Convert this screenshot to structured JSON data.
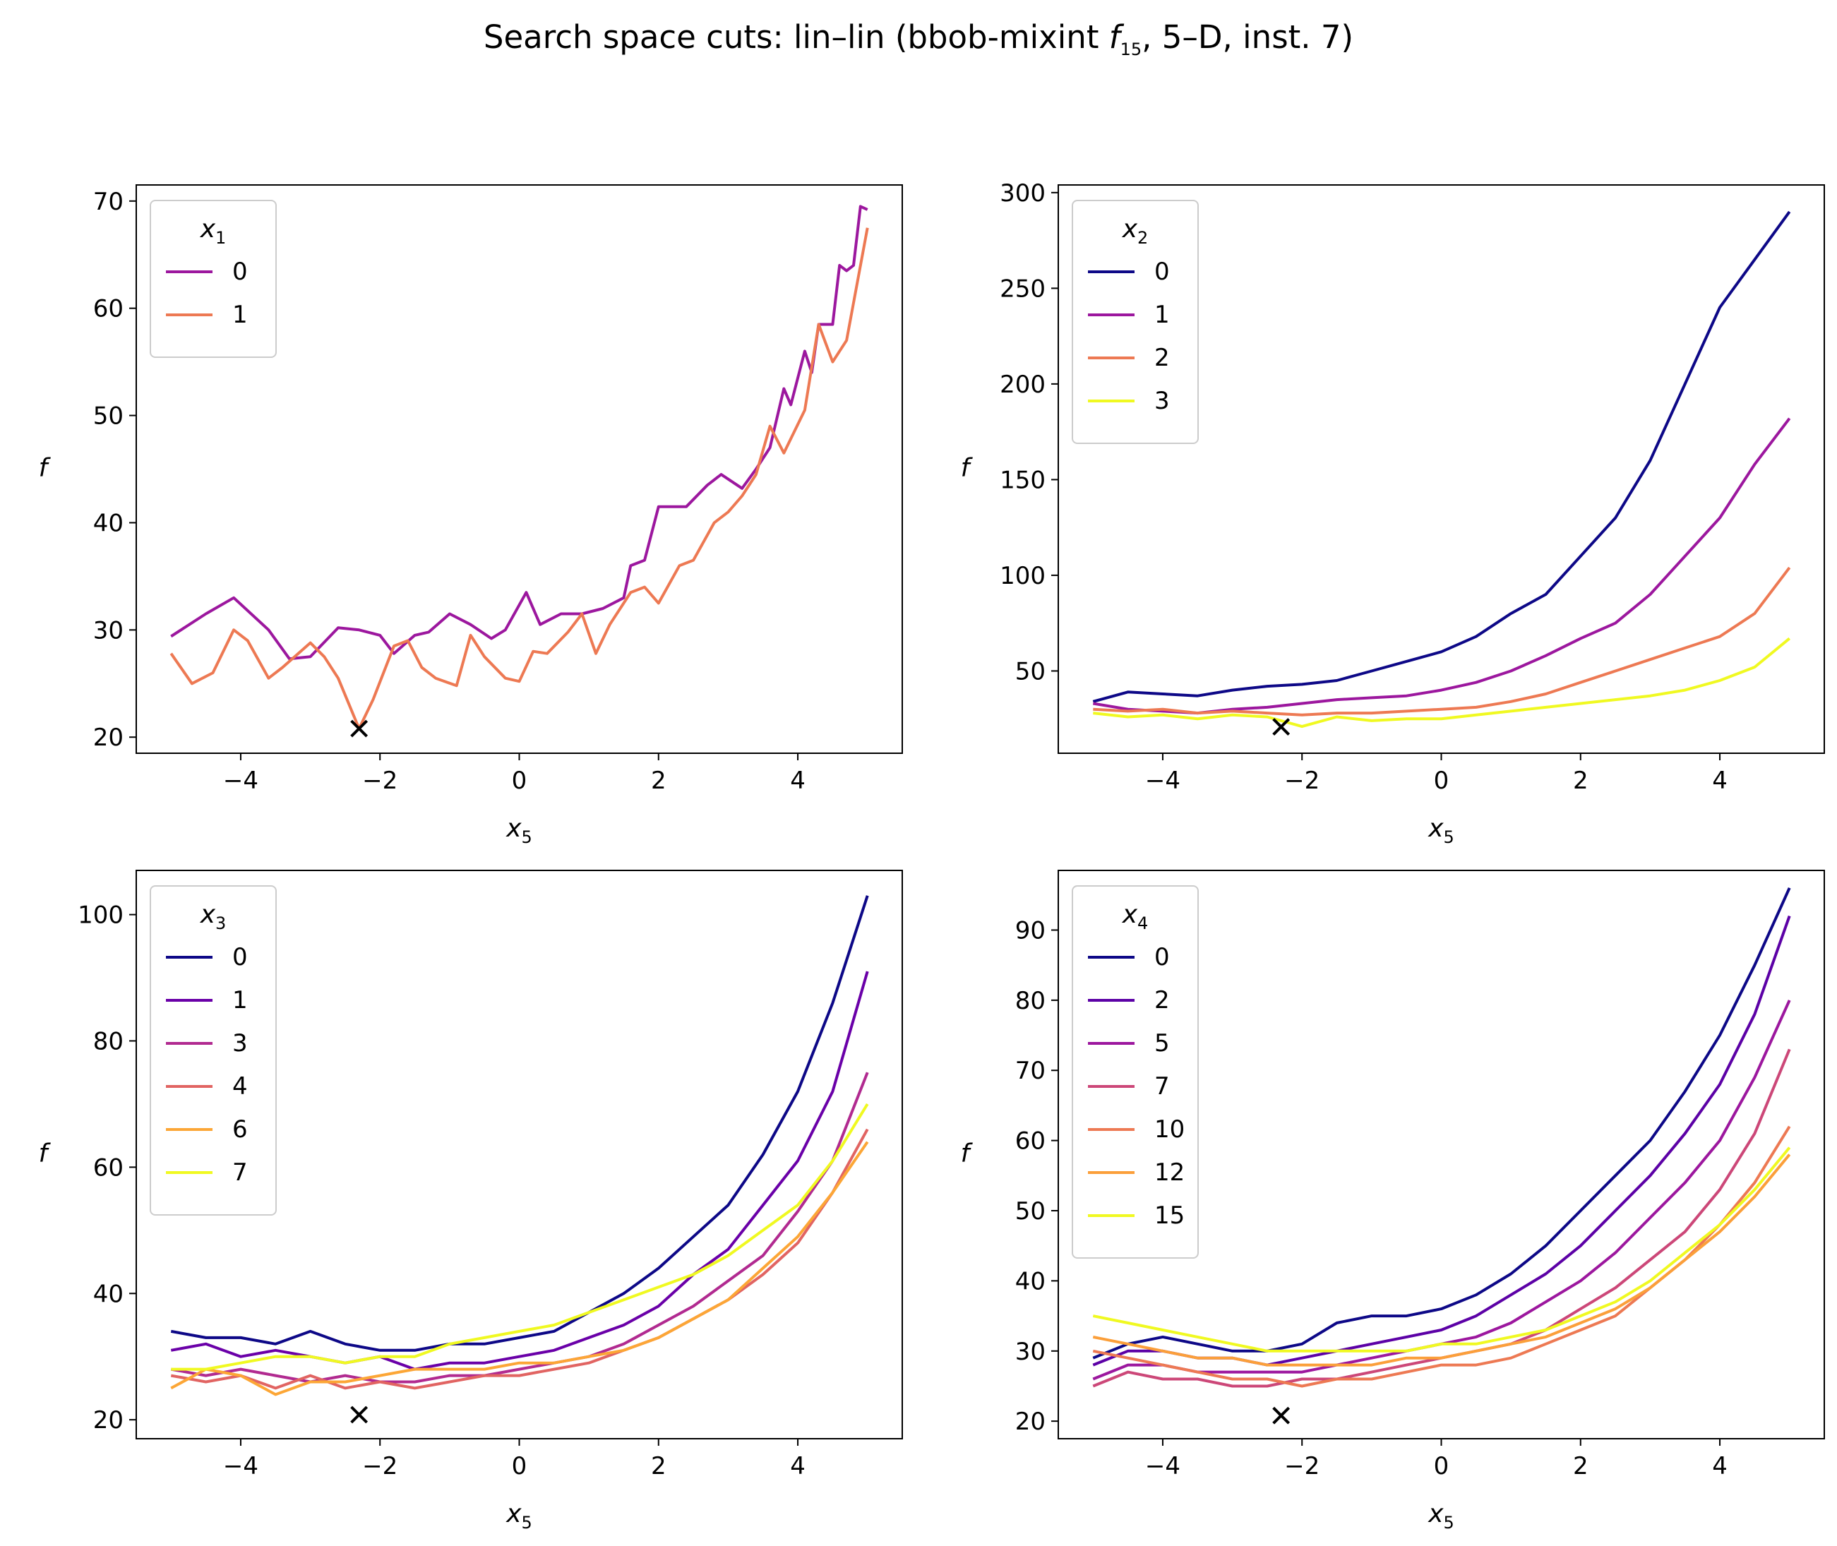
{
  "figure": {
    "title_prefix": "Search space cuts: lin–lin (bbob-mixint ",
    "title_f": "f",
    "title_sub": "15",
    "title_suffix": ", 5–D, inst. 7)"
  },
  "chart_data": [
    {
      "type": "line",
      "xlabel": "x",
      "xlabel_sub": "5",
      "ylabel": "f",
      "xlim": [
        -5.5,
        5.5
      ],
      "ylim": [
        18.5,
        71.5
      ],
      "xticks": [
        -4,
        -2,
        0,
        2,
        4
      ],
      "yticks": [
        20,
        30,
        40,
        50,
        60,
        70
      ],
      "legend_title": "x",
      "legend_title_sub": "1",
      "legend_position": "upper left",
      "marker": {
        "x": -2.3,
        "y": 20.8,
        "symbol": "×",
        "color": "#000000"
      },
      "series": [
        {
          "name": "0",
          "color": "#9c179e",
          "x": [
            -5,
            -4.5,
            -4.1,
            -3.6,
            -3.3,
            -3,
            -2.6,
            -2.3,
            -2,
            -1.8,
            -1.5,
            -1.3,
            -1,
            -0.7,
            -0.4,
            -0.2,
            0.1,
            0.3,
            0.6,
            0.9,
            1.2,
            1.5,
            1.6,
            1.8,
            2,
            2.4,
            2.7,
            2.9,
            3.2,
            3.4,
            3.6,
            3.8,
            3.9,
            4.1,
            4.2,
            4.3,
            4.5,
            4.6,
            4.7,
            4.8,
            4.9,
            5
          ],
          "y": [
            29.4,
            31.5,
            33,
            30,
            27.3,
            27.5,
            30.2,
            30,
            29.5,
            27.8,
            29.5,
            29.8,
            31.5,
            30.5,
            29.2,
            30,
            33.5,
            30.5,
            31.5,
            31.5,
            32,
            33,
            36,
            36.5,
            41.5,
            41.5,
            43.5,
            44.5,
            43.2,
            45,
            47,
            52.5,
            51,
            56,
            54,
            58.5,
            58.5,
            64,
            63.5,
            64,
            69.5,
            69.2
          ]
        },
        {
          "name": "1",
          "color": "#ed7953",
          "x": [
            -5,
            -4.7,
            -4.4,
            -4.1,
            -3.9,
            -3.6,
            -3.4,
            -3,
            -2.8,
            -2.6,
            -2.3,
            -2.1,
            -1.8,
            -1.6,
            -1.4,
            -1.2,
            -0.9,
            -0.7,
            -0.5,
            -0.2,
            0,
            0.2,
            0.4,
            0.7,
            0.9,
            1.1,
            1.3,
            1.6,
            1.8,
            2,
            2.3,
            2.5,
            2.8,
            3,
            3.2,
            3.4,
            3.6,
            3.8,
            4.1,
            4.3,
            4.5,
            4.7,
            5
          ],
          "y": [
            27.8,
            25,
            26,
            30,
            29,
            25.5,
            26.5,
            28.8,
            27.5,
            25.5,
            20.8,
            23.5,
            28.5,
            29,
            26.5,
            25.5,
            24.8,
            29.5,
            27.5,
            25.5,
            25.2,
            28,
            27.8,
            29.8,
            31.5,
            27.8,
            30.5,
            33.5,
            34,
            32.5,
            36,
            36.5,
            40,
            41,
            42.5,
            44.5,
            49,
            46.5,
            50.5,
            58.5,
            55,
            57,
            67.5
          ]
        }
      ]
    },
    {
      "type": "line",
      "xlabel": "x",
      "xlabel_sub": "5",
      "ylabel": "f",
      "xlim": [
        -5.5,
        5.5
      ],
      "ylim": [
        7,
        304
      ],
      "xticks": [
        -4,
        -2,
        0,
        2,
        4
      ],
      "yticks": [
        50,
        100,
        150,
        200,
        250,
        300
      ],
      "legend_title": "x",
      "legend_title_sub": "2",
      "legend_position": "upper left",
      "marker": {
        "x": -2.3,
        "y": 20.8,
        "symbol": "×",
        "color": "#000000"
      },
      "series": [
        {
          "name": "0",
          "color": "#0d0887",
          "x": [
            -5,
            -4.5,
            -4,
            -3.5,
            -3,
            -2.5,
            -2,
            -1.5,
            -1,
            -0.5,
            0,
            0.5,
            1,
            1.5,
            2,
            2.5,
            3,
            3.5,
            4,
            4.5,
            5
          ],
          "y": [
            34,
            39,
            38,
            37,
            40,
            42,
            43,
            45,
            50,
            55,
            60,
            68,
            80,
            90,
            110,
            130,
            160,
            200,
            240,
            265,
            290
          ]
        },
        {
          "name": "1",
          "color": "#9c179e",
          "x": [
            -5,
            -4.5,
            -4,
            -3.5,
            -3,
            -2.5,
            -2,
            -1.5,
            -1,
            -0.5,
            0,
            0.5,
            1,
            1.5,
            2,
            2.5,
            3,
            3.5,
            4,
            4.5,
            5
          ],
          "y": [
            33,
            30,
            29,
            28,
            30,
            31,
            33,
            35,
            36,
            37,
            40,
            44,
            50,
            58,
            67,
            75,
            90,
            110,
            130,
            158,
            182
          ]
        },
        {
          "name": "2",
          "color": "#ed7953",
          "x": [
            -5,
            -4.5,
            -4,
            -3.5,
            -3,
            -2.5,
            -2,
            -1.5,
            -1,
            -0.5,
            0,
            0.5,
            1,
            1.5,
            2,
            2.5,
            3,
            3.5,
            4,
            4.5,
            5
          ],
          "y": [
            30,
            29,
            30,
            28,
            29,
            28,
            27,
            28,
            28,
            29,
            30,
            31,
            34,
            38,
            44,
            50,
            56,
            62,
            68,
            80,
            104
          ]
        },
        {
          "name": "3",
          "color": "#f0f921",
          "x": [
            -5,
            -4.5,
            -4,
            -3.5,
            -3,
            -2.5,
            -2,
            -1.5,
            -1,
            -0.5,
            0,
            0.5,
            1,
            1.5,
            2,
            2.5,
            3,
            3.5,
            4,
            4.5,
            5
          ],
          "y": [
            28,
            26,
            27,
            25,
            27,
            26,
            21,
            26,
            24,
            25,
            25,
            27,
            29,
            31,
            33,
            35,
            37,
            40,
            45,
            52,
            67
          ]
        }
      ]
    },
    {
      "type": "line",
      "xlabel": "x",
      "xlabel_sub": "5",
      "ylabel": "f",
      "xlim": [
        -5.5,
        5.5
      ],
      "ylim": [
        17,
        107
      ],
      "xticks": [
        -4,
        -2,
        0,
        2,
        4
      ],
      "yticks": [
        20,
        40,
        60,
        80,
        100
      ],
      "legend_title": "x",
      "legend_title_sub": "3",
      "legend_position": "upper left",
      "marker": {
        "x": -2.3,
        "y": 20.8,
        "symbol": "×",
        "color": "#000000"
      },
      "series": [
        {
          "name": "0",
          "color": "#0d0887",
          "x": [
            -5,
            -4.5,
            -4,
            -3.5,
            -3,
            -2.5,
            -2,
            -1.5,
            -1,
            -0.5,
            0,
            0.5,
            1,
            1.5,
            2,
            2.5,
            3,
            3.5,
            4,
            4.5,
            5
          ],
          "y": [
            34,
            33,
            33,
            32,
            34,
            32,
            31,
            31,
            32,
            32,
            33,
            34,
            37,
            40,
            44,
            49,
            54,
            62,
            72,
            86,
            103
          ]
        },
        {
          "name": "1",
          "color": "#6a00a8",
          "x": [
            -5,
            -4.5,
            -4,
            -3.5,
            -3,
            -2.5,
            -2,
            -1.5,
            -1,
            -0.5,
            0,
            0.5,
            1,
            1.5,
            2,
            2.5,
            3,
            3.5,
            4,
            4.5,
            5
          ],
          "y": [
            31,
            32,
            30,
            31,
            30,
            29,
            30,
            28,
            29,
            29,
            30,
            31,
            33,
            35,
            38,
            43,
            47,
            54,
            61,
            72,
            91
          ]
        },
        {
          "name": "3",
          "color": "#b12a90",
          "x": [
            -5,
            -4.5,
            -4,
            -3.5,
            -3,
            -2.5,
            -2,
            -1.5,
            -1,
            -0.5,
            0,
            0.5,
            1,
            1.5,
            2,
            2.5,
            3,
            3.5,
            4,
            4.5,
            5
          ],
          "y": [
            28,
            27,
            28,
            27,
            26,
            27,
            26,
            26,
            27,
            27,
            28,
            29,
            30,
            32,
            35,
            38,
            42,
            46,
            53,
            61,
            75
          ]
        },
        {
          "name": "4",
          "color": "#e16462",
          "x": [
            -5,
            -4.5,
            -4,
            -3.5,
            -3,
            -2.5,
            -2,
            -1.5,
            -1,
            -0.5,
            0,
            0.5,
            1,
            1.5,
            2,
            2.5,
            3,
            3.5,
            4,
            4.5,
            5
          ],
          "y": [
            27,
            26,
            27,
            25,
            27,
            25,
            26,
            25,
            26,
            27,
            27,
            28,
            29,
            31,
            33,
            36,
            39,
            43,
            48,
            56,
            66
          ]
        },
        {
          "name": "6",
          "color": "#fca636",
          "x": [
            -5,
            -4.5,
            -4,
            -3.5,
            -3,
            -2.5,
            -2,
            -1.5,
            -1,
            -0.5,
            0,
            0.5,
            1,
            1.5,
            2,
            2.5,
            3,
            3.5,
            4,
            4.5,
            5
          ],
          "y": [
            25,
            28,
            27,
            24,
            26,
            26,
            27,
            28,
            28,
            28,
            29,
            29,
            30,
            31,
            33,
            36,
            39,
            44,
            49,
            56,
            64
          ]
        },
        {
          "name": "7",
          "color": "#f0f921",
          "x": [
            -5,
            -4.5,
            -4,
            -3.5,
            -3,
            -2.5,
            -2,
            -1.5,
            -1,
            -0.5,
            0,
            0.5,
            1,
            1.5,
            2,
            2.5,
            3,
            3.5,
            4,
            4.5,
            5
          ],
          "y": [
            28,
            28,
            29,
            30,
            30,
            29,
            30,
            30,
            32,
            33,
            34,
            35,
            37,
            39,
            41,
            43,
            46,
            50,
            54,
            61,
            70
          ]
        }
      ]
    },
    {
      "type": "line",
      "xlabel": "x",
      "xlabel_sub": "5",
      "ylabel": "f",
      "xlim": [
        -5.5,
        5.5
      ],
      "ylim": [
        17.5,
        98.5
      ],
      "xticks": [
        -4,
        -2,
        0,
        2,
        4
      ],
      "yticks": [
        20,
        30,
        40,
        50,
        60,
        70,
        80,
        90
      ],
      "legend_title": "x",
      "legend_title_sub": "4",
      "legend_position": "upper left",
      "marker": {
        "x": -2.3,
        "y": 20.8,
        "symbol": "×",
        "color": "#000000"
      },
      "series": [
        {
          "name": "0",
          "color": "#0d0887",
          "x": [
            -5,
            -4.5,
            -4,
            -3.5,
            -3,
            -2.5,
            -2,
            -1.5,
            -1,
            -0.5,
            0,
            0.5,
            1,
            1.5,
            2,
            2.5,
            3,
            3.5,
            4,
            4.5,
            5
          ],
          "y": [
            29,
            31,
            32,
            31,
            30,
            30,
            31,
            34,
            35,
            35,
            36,
            38,
            41,
            45,
            50,
            55,
            60,
            67,
            75,
            85,
            96
          ]
        },
        {
          "name": "2",
          "color": "#5c01a6",
          "x": [
            -5,
            -4.5,
            -4,
            -3.5,
            -3,
            -2.5,
            -2,
            -1.5,
            -1,
            -0.5,
            0,
            0.5,
            1,
            1.5,
            2,
            2.5,
            3,
            3.5,
            4,
            4.5,
            5
          ],
          "y": [
            28,
            30,
            30,
            29,
            29,
            28,
            29,
            30,
            31,
            32,
            33,
            35,
            38,
            41,
            45,
            50,
            55,
            61,
            68,
            78,
            92
          ]
        },
        {
          "name": "5",
          "color": "#9c179e",
          "x": [
            -5,
            -4.5,
            -4,
            -3.5,
            -3,
            -2.5,
            -2,
            -1.5,
            -1,
            -0.5,
            0,
            0.5,
            1,
            1.5,
            2,
            2.5,
            3,
            3.5,
            4,
            4.5,
            5
          ],
          "y": [
            26,
            28,
            28,
            27,
            27,
            27,
            27,
            28,
            29,
            30,
            31,
            32,
            34,
            37,
            40,
            44,
            49,
            54,
            60,
            69,
            80
          ]
        },
        {
          "name": "7",
          "color": "#cc4778",
          "x": [
            -5,
            -4.5,
            -4,
            -3.5,
            -3,
            -2.5,
            -2,
            -1.5,
            -1,
            -0.5,
            0,
            0.5,
            1,
            1.5,
            2,
            2.5,
            3,
            3.5,
            4,
            4.5,
            5
          ],
          "y": [
            25,
            27,
            26,
            26,
            25,
            25,
            26,
            26,
            27,
            28,
            29,
            30,
            31,
            33,
            36,
            39,
            43,
            47,
            53,
            61,
            73
          ]
        },
        {
          "name": "10",
          "color": "#ed7953",
          "x": [
            -5,
            -4.5,
            -4,
            -3.5,
            -3,
            -2.5,
            -2,
            -1.5,
            -1,
            -0.5,
            0,
            0.5,
            1,
            1.5,
            2,
            2.5,
            3,
            3.5,
            4,
            4.5,
            5
          ],
          "y": [
            30,
            29,
            28,
            27,
            26,
            26,
            25,
            26,
            26,
            27,
            28,
            28,
            29,
            31,
            33,
            35,
            39,
            43,
            48,
            54,
            62
          ]
        },
        {
          "name": "12",
          "color": "#fb9f3a",
          "x": [
            -5,
            -4.5,
            -4,
            -3.5,
            -3,
            -2.5,
            -2,
            -1.5,
            -1,
            -0.5,
            0,
            0.5,
            1,
            1.5,
            2,
            2.5,
            3,
            3.5,
            4,
            4.5,
            5
          ],
          "y": [
            32,
            31,
            30,
            29,
            29,
            28,
            28,
            28,
            28,
            29,
            29,
            30,
            31,
            32,
            34,
            36,
            39,
            43,
            47,
            52,
            58
          ]
        },
        {
          "name": "15",
          "color": "#f0f921",
          "x": [
            -5,
            -4.5,
            -4,
            -3.5,
            -3,
            -2.5,
            -2,
            -1.5,
            -1,
            -0.5,
            0,
            0.5,
            1,
            1.5,
            2,
            2.5,
            3,
            3.5,
            4,
            4.5,
            5
          ],
          "y": [
            35,
            34,
            33,
            32,
            31,
            30,
            30,
            30,
            30,
            30,
            31,
            31,
            32,
            33,
            35,
            37,
            40,
            44,
            48,
            53,
            59
          ]
        }
      ]
    }
  ]
}
